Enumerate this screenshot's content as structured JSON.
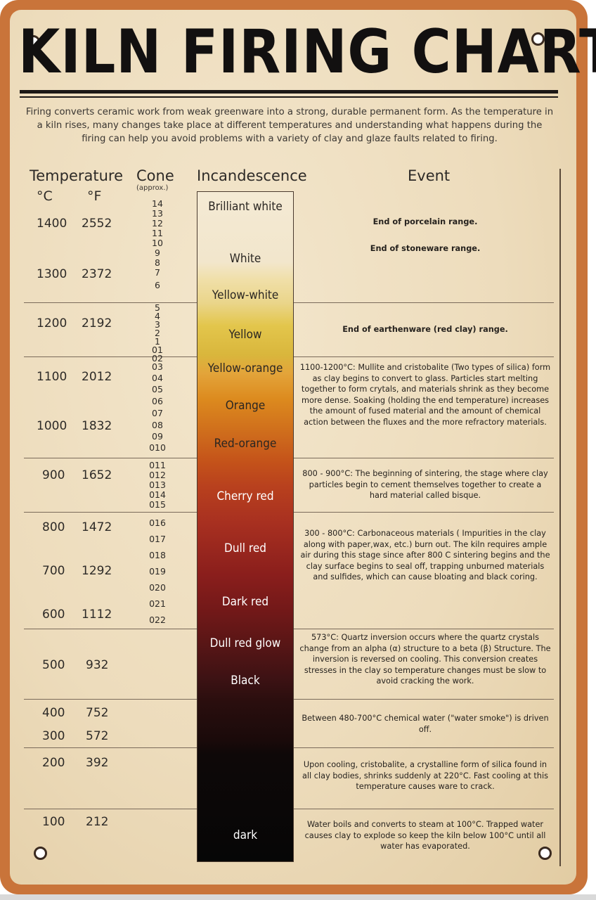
{
  "title": "KILN FIRING CHART",
  "intro": "Firing converts ceramic work from weak greenware into a strong, durable permanent form. As the temperature in a kiln rises, many changes take place at different temperatures and understanding what happens during the firing can help you avoid problems with a variety of clay and glaze faults related to firing.",
  "headers": {
    "temperature": "Temperature",
    "celsius": "°C",
    "fahrenheit": "°F",
    "cone": "Cone",
    "cone_note": "(approx.)",
    "incandescence": "Incandescence",
    "event": "Event"
  },
  "temperatures": [
    {
      "c": "1400",
      "f": "2552"
    },
    {
      "c": "1300",
      "f": "2372"
    },
    {
      "c": "1200",
      "f": "2192"
    },
    {
      "c": "1100",
      "f": "2012"
    },
    {
      "c": "1000",
      "f": "1832"
    },
    {
      "c": "900",
      "f": "1652"
    },
    {
      "c": "800",
      "f": "1472"
    },
    {
      "c": "700",
      "f": "1292"
    },
    {
      "c": "600",
      "f": "1112"
    },
    {
      "c": "500",
      "f": "932"
    },
    {
      "c": "400",
      "f": "752"
    },
    {
      "c": "300",
      "f": "572"
    },
    {
      "c": "200",
      "f": "392"
    },
    {
      "c": "100",
      "f": "212"
    }
  ],
  "cones": [
    "14",
    "13",
    "12",
    "11",
    "10",
    "9",
    "8",
    "7",
    "6",
    "5",
    "4",
    "3",
    "2",
    "1",
    "01",
    "02",
    "03",
    "04",
    "05",
    "06",
    "07",
    "08",
    "09",
    "010",
    "011",
    "012",
    "013",
    "014",
    "015",
    "016",
    "017",
    "018",
    "019",
    "020",
    "021",
    "022"
  ],
  "incandescence": [
    "Brilliant white",
    "White",
    "Yellow-white",
    "Yellow",
    "Yellow-orange",
    "Orange",
    "Red-orange",
    "Cherry red",
    "Dull red",
    "Dark red",
    "Dull red glow",
    "Black",
    "dark"
  ],
  "events": [
    "End of porcelain range.",
    "End of stoneware range.",
    "End of earthenware (red clay) range.",
    "1100-1200°C: Mullite and cristobalite (Two types of silica) form as clay begins to convert to glass. Particles start melting together to form crytals, and materials shrink as they become more dense. Soaking (holding the end temperature) increases the amount of fused material and the amount of chemical action between the fluxes and the more refractory materials.",
    "800 - 900°C: The beginning of sintering, the stage where clay particles begin to cement themselves together to create a hard material called bisque.",
    "300 - 800°C: Carbonaceous materials ( Impurities in the clay along with paper,wax, etc.) burn out. The kiln requires ample air during this stage since after 800 C sintering begins and the clay surface begins to seal off, trapping unburned materials and sulfides, which can cause bloating and black coring.",
    "573°C: Quartz inversion occurs where the quartz crystals change from an alpha (α) structure to a beta (β) Structure. The inversion is reversed on cooling. This conversion creates stresses in the clay so temperature changes must be slow to avoid cracking the work.",
    "Between 480-700°C chemical water (\"water smoke\") is driven off.",
    "Upon cooling, cristobalite, a crystalline form of silica found in all clay bodies, shrinks suddenly at 220°C. Fast cooling at this temperature causes ware to crack.",
    "Water boils and converts to steam at 100°C. Trapped water causes clay to explode so keep the kiln below 100°C until all water has evaporated."
  ],
  "colors": {
    "frame_rust": "#c9743a",
    "paper": "#eddcbc",
    "ink": "#121010"
  }
}
